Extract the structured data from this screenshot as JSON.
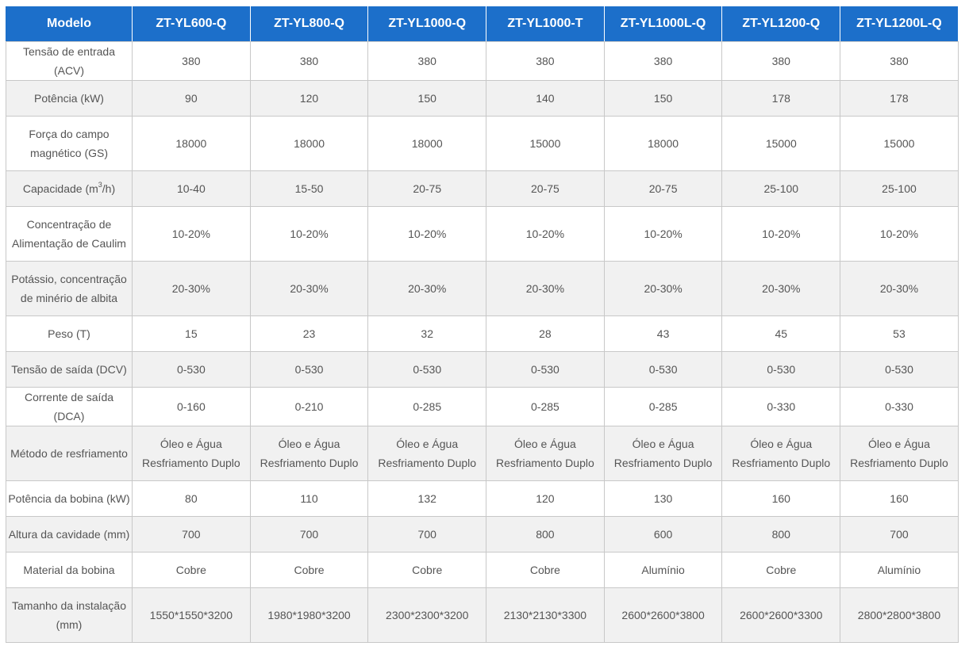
{
  "table": {
    "header_label": "Modelo",
    "models": [
      "ZT-YL600-Q",
      "ZT-YL800-Q",
      "ZT-YL1000-Q",
      "ZT-YL1000-T",
      "ZT-YL1000L-Q",
      "ZT-YL1200-Q",
      "ZT-YL1200L-Q"
    ],
    "rows": [
      {
        "label": "Tensão de entrada (ACV)",
        "values": [
          "380",
          "380",
          "380",
          "380",
          "380",
          "380",
          "380"
        ]
      },
      {
        "label": "Potência (kW)",
        "values": [
          "90",
          "120",
          "150",
          "140",
          "150",
          "178",
          "178"
        ]
      },
      {
        "label": "Força do campo magnético (GS)",
        "values": [
          "18000",
          "18000",
          "18000",
          "15000",
          "18000",
          "15000",
          "15000"
        ]
      },
      {
        "label_prefix": "Capacidade (m",
        "label_sup": "3",
        "label_suffix": "/h)",
        "values": [
          "10-40",
          "15-50",
          "20-75",
          "20-75",
          "20-75",
          "25-100",
          "25-100"
        ]
      },
      {
        "label": "Concentração de Alimentação de Caulim",
        "values": [
          "10-20%",
          "10-20%",
          "10-20%",
          "10-20%",
          "10-20%",
          "10-20%",
          "10-20%"
        ]
      },
      {
        "label": "Potássio, concentração de minério de albita",
        "values": [
          "20-30%",
          "20-30%",
          "20-30%",
          "20-30%",
          "20-30%",
          "20-30%",
          "20-30%"
        ]
      },
      {
        "label": "Peso (T)",
        "values": [
          "15",
          "23",
          "32",
          "28",
          "43",
          "45",
          "53"
        ]
      },
      {
        "label": "Tensão de saída (DCV)",
        "values": [
          "0-530",
          "0-530",
          "0-530",
          "0-530",
          "0-530",
          "0-530",
          "0-530"
        ]
      },
      {
        "label": "Corrente de saída (DCA)",
        "values": [
          "0-160",
          "0-210",
          "0-285",
          "0-285",
          "0-285",
          "0-330",
          "0-330"
        ]
      },
      {
        "label": "Método de resfriamento",
        "values": [
          "Óleo e Água Resfriamento Duplo",
          "Óleo e Água Resfriamento Duplo",
          "Óleo e Água Resfriamento Duplo",
          "Óleo e Água Resfriamento Duplo",
          "Óleo e Água Resfriamento Duplo",
          "Óleo e Água Resfriamento Duplo",
          "Óleo e Água Resfriamento Duplo"
        ]
      },
      {
        "label": "Potência da bobina (kW)",
        "values": [
          "80",
          "110",
          "132",
          "120",
          "130",
          "160",
          "160"
        ]
      },
      {
        "label": "Altura da cavidade (mm)",
        "values": [
          "700",
          "700",
          "700",
          "800",
          "600",
          "800",
          "700"
        ]
      },
      {
        "label": "Material da bobina",
        "values": [
          "Cobre",
          "Cobre",
          "Cobre",
          "Cobre",
          "Alumínio",
          "Cobre",
          "Alumínio"
        ]
      },
      {
        "label": "Tamanho da instalação (mm)",
        "values": [
          "1550*1550*3200",
          "1980*1980*3200",
          "2300*2300*3200",
          "2130*2130*3300",
          "2600*2600*3800",
          "2600*2600*3300",
          "2800*2800*3800"
        ]
      }
    ]
  },
  "colors": {
    "header_bg": "#1c6fca",
    "header_text": "#ffffff",
    "row_alt_bg": "#f1f1f1",
    "border": "#c8c8c8",
    "text": "#555555"
  }
}
